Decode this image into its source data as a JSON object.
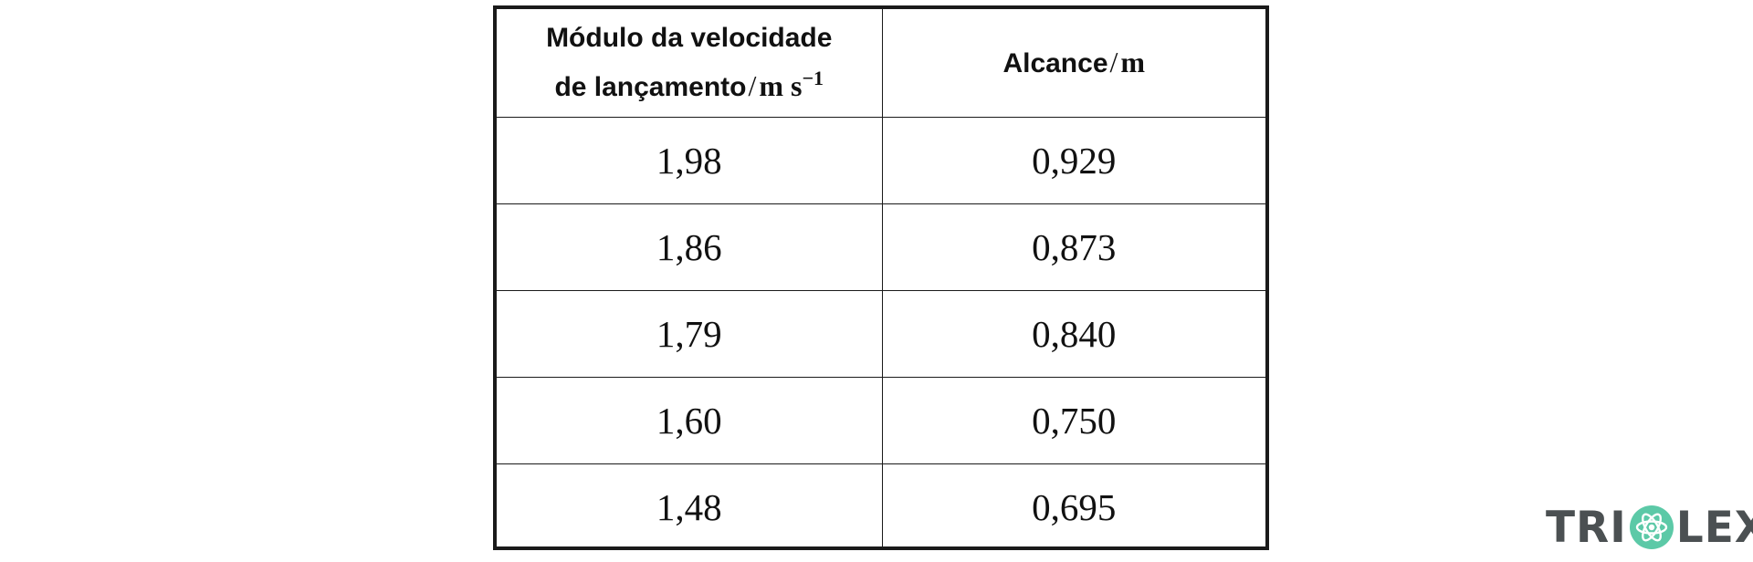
{
  "table": {
    "header": {
      "col1_text_line1": "Módulo da velocidade",
      "col1_text_line2": "de lançamento",
      "col1_unit": "m s",
      "col1_unit_exp": "−1",
      "col2_text": "Alcance",
      "col2_unit": "m",
      "separator": "/"
    },
    "rows": [
      {
        "speed": "1,98",
        "range": "0,929"
      },
      {
        "speed": "1,86",
        "range": "0,873"
      },
      {
        "speed": "1,79",
        "range": "0,840"
      },
      {
        "speed": "1,60",
        "range": "0,750"
      },
      {
        "speed": "1,48",
        "range": "0,695"
      }
    ]
  },
  "watermark": {
    "text": "TRIOLEX",
    "brand_color": "#5cc9a7",
    "text_color": "#4b5052",
    "icon": "atom-icon"
  }
}
